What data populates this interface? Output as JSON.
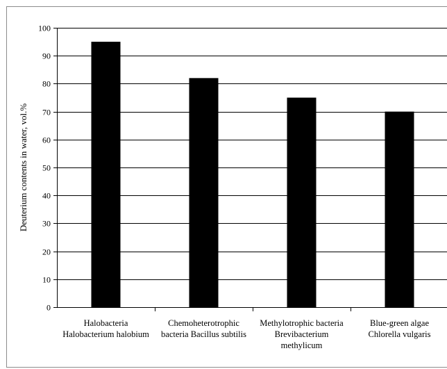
{
  "chart_data": {
    "type": "bar",
    "ylabel": "Deuterium  contents in water, vol.%",
    "ylim": [
      0,
      100
    ],
    "ytick_step": 10,
    "grid": true,
    "categories": [
      [
        "Halobacteria",
        "Halobacterium halobium"
      ],
      [
        "Chemoheterotrophic",
        "bacteria Bacillus subtilis"
      ],
      [
        "Methylotrophic bacteria",
        "Brevibacterium",
        "methylicum"
      ],
      [
        "Blue-green algae",
        "Chlorella vulgaris"
      ]
    ],
    "values": [
      95,
      82,
      75,
      70
    ],
    "bar_color": "#000000",
    "grid_color": "#000000"
  }
}
